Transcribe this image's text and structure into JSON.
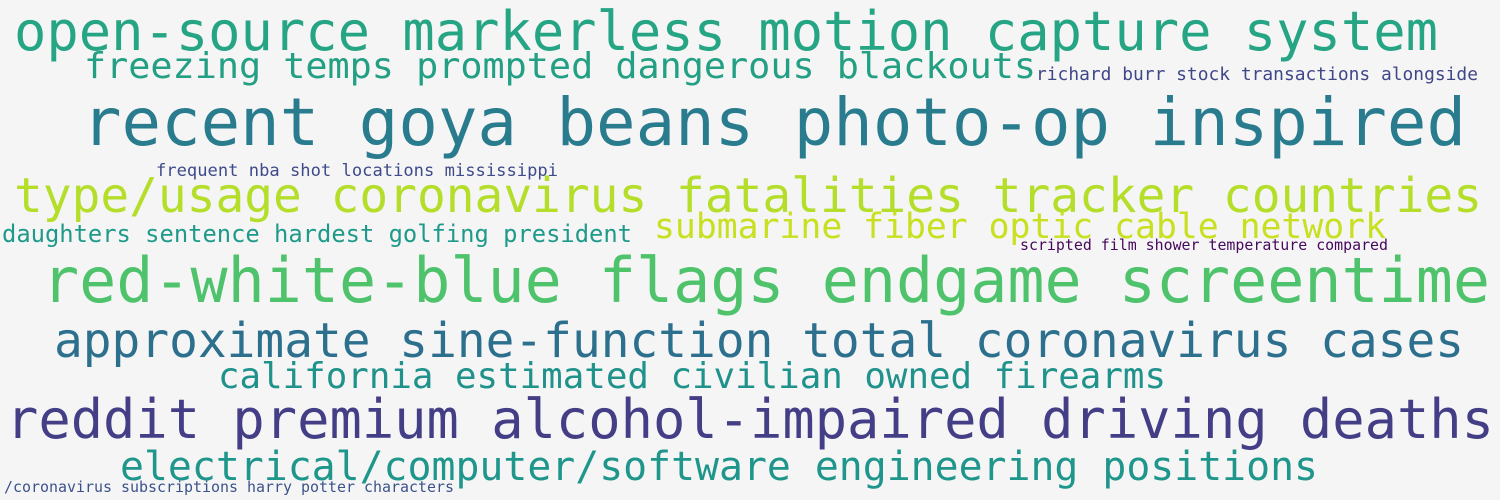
{
  "phrases": [
    {
      "text": "open-source markerless motion capture system",
      "color": "#25a584"
    },
    {
      "text": "freezing temps prompted dangerous blackouts",
      "color": "#23a083"
    },
    {
      "text": "richard burr stock transactions alongside",
      "color": "#3f4788"
    },
    {
      "text": "recent goya beans photo-op inspired",
      "color": "#297b8e"
    },
    {
      "text": "frequent nba shot locations mississippi",
      "color": "#3e4a89"
    },
    {
      "text": "type/usage coronavirus fatalities tracker countries",
      "color": "#b5de2b"
    },
    {
      "text": "submarine fiber optic cable network",
      "color": "#c8e020"
    },
    {
      "text": "daughters sentence hardest golfing president",
      "color": "#1f9a8a"
    },
    {
      "text": "scripted film shower temperature compared",
      "color": "#46085c"
    },
    {
      "text": "red-white-blue flags endgame screentime",
      "color": "#4ec36b"
    },
    {
      "text": "approximate sine-function total coronavirus cases",
      "color": "#2d708e"
    },
    {
      "text": "california estimated civilian owned firearms",
      "color": "#20928c"
    },
    {
      "text": "reddit premium alcohol-impaired driving deaths",
      "color": "#433e85"
    },
    {
      "text": "electrical/computer/software engineering positions",
      "color": "#1f968b"
    },
    {
      "text": "/coronavirus subscriptions harry potter characters",
      "color": "#3b528b"
    }
  ]
}
